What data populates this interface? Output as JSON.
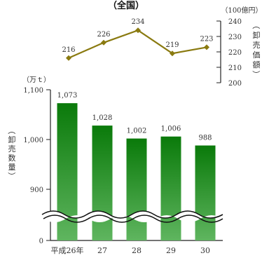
{
  "title": "（全国）",
  "chart_data": {
    "type": "bar+line",
    "categories": [
      "平成26年",
      "27",
      "28",
      "29",
      "30"
    ],
    "bar_series": {
      "name": "卸売数量",
      "unit": "（万ｔ）",
      "values": [
        1073,
        1028,
        1002,
        1006,
        988
      ],
      "value_labels": [
        "1,073",
        "1,028",
        "1,002",
        "1,006",
        "988"
      ],
      "axis_ticks": [
        "0",
        "900",
        "1,000",
        "1,100"
      ],
      "axis_break": "between 0 and 900",
      "color_top": "#0a7a0a",
      "color_bottom": "#5fb55f"
    },
    "line_series": {
      "name": "卸売価額",
      "unit": "（100億円）",
      "values": [
        216,
        226,
        234,
        219,
        223
      ],
      "value_labels": [
        "216",
        "226",
        "234",
        "219",
        "223"
      ],
      "axis_ticks": [
        "200",
        "210",
        "220",
        "230",
        "240"
      ],
      "ylim": [
        200,
        240
      ],
      "color": "#8a7a10"
    },
    "left_axis_title": [
      "（",
      "卸",
      "売",
      "数",
      "量",
      "）"
    ],
    "right_axis_title": [
      "（",
      "卸",
      "売",
      "価",
      "額",
      "）"
    ]
  }
}
